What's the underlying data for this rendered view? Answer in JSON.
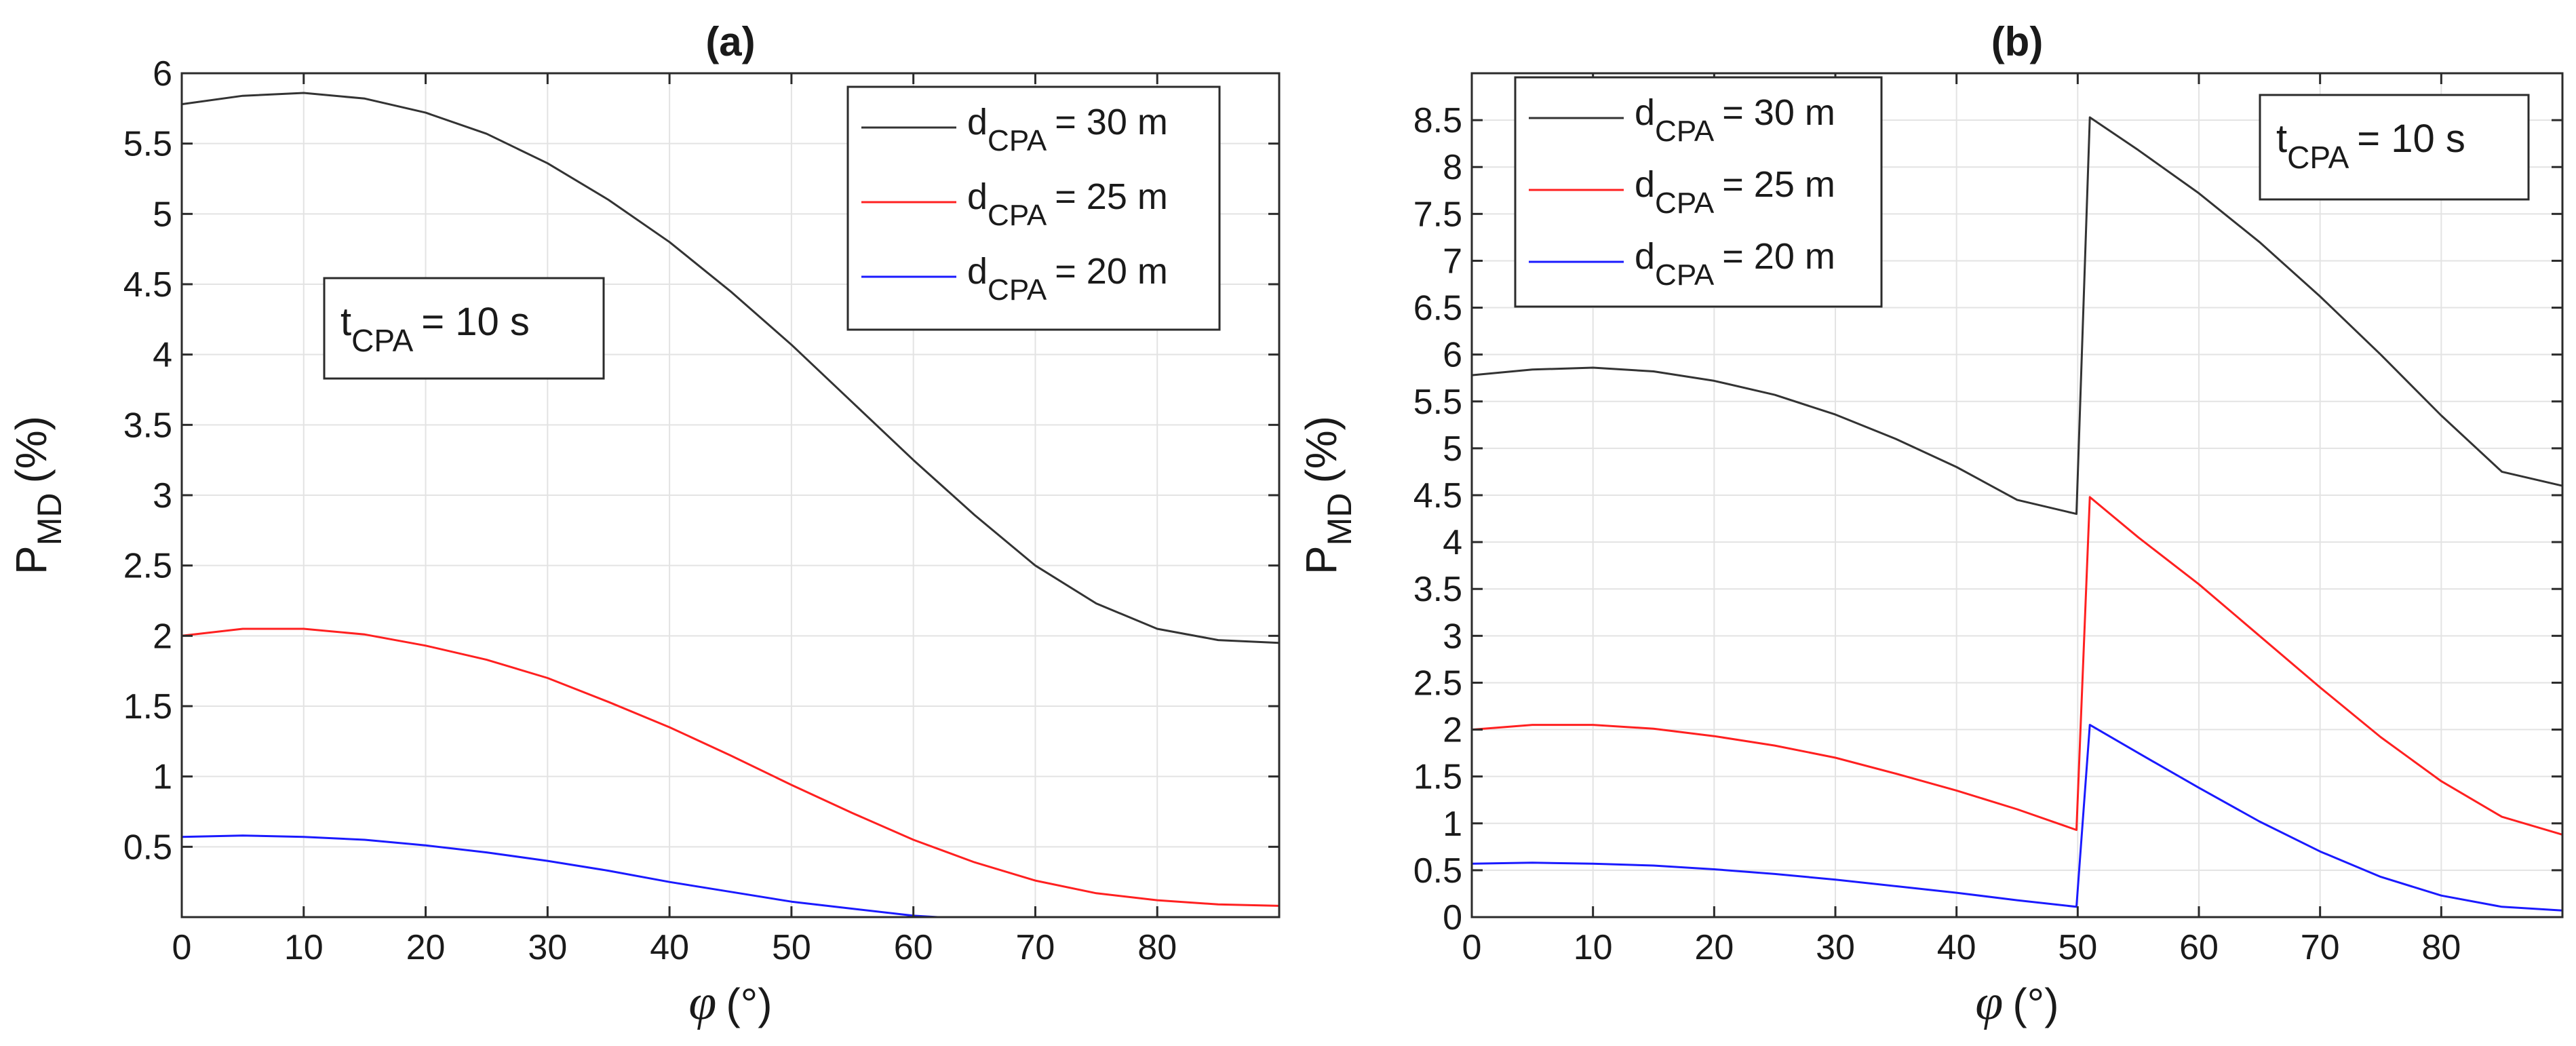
{
  "chart_data": [
    {
      "panel_label": "(a)",
      "type": "line",
      "title": "(a)",
      "xlabel": "φ (°)",
      "xlabel_symbol": "φ",
      "xlabel_unit": "(°)",
      "ylabel": "P_MD (%)",
      "ylabel_main": "P",
      "ylabel_sub": "MD",
      "ylabel_unit": "(%)",
      "xlim": [
        0,
        90
      ],
      "ylim": [
        0,
        6
      ],
      "x_ticks": [
        0,
        10,
        20,
        30,
        40,
        50,
        60,
        70,
        80
      ],
      "y_ticks": [
        0.5,
        1,
        1.5,
        2,
        2.5,
        3,
        3.5,
        4,
        4.5,
        5,
        5.5,
        6
      ],
      "grid": true,
      "legend_placement": "top-right",
      "annotation": {
        "main": "t",
        "sub": "CPA",
        "rest": "= 10 s"
      },
      "series": [
        {
          "name": "d_CPA = 30 m",
          "legend_main": "d",
          "legend_sub": "CPA",
          "legend_rest": "= 30 m",
          "color": "#333333",
          "x": [
            0,
            5,
            10,
            15,
            20,
            25,
            30,
            35,
            40,
            45,
            50,
            55,
            60,
            65,
            70,
            75,
            80,
            85,
            90
          ],
          "values": [
            5.78,
            5.84,
            5.86,
            5.82,
            5.72,
            5.57,
            5.36,
            5.1,
            4.8,
            4.45,
            4.07,
            3.66,
            3.25,
            2.86,
            2.5,
            2.23,
            2.05,
            1.97,
            1.95
          ]
        },
        {
          "name": "d_CPA = 25 m",
          "legend_main": "d",
          "legend_sub": "CPA",
          "legend_rest": "= 25 m",
          "color": "#ff2020",
          "x": [
            0,
            5,
            10,
            15,
            20,
            25,
            30,
            35,
            40,
            45,
            50,
            55,
            60,
            65,
            70,
            75,
            80,
            85,
            90
          ],
          "values": [
            2.0,
            2.05,
            2.05,
            2.01,
            1.93,
            1.83,
            1.7,
            1.53,
            1.35,
            1.15,
            0.94,
            0.74,
            0.55,
            0.39,
            0.26,
            0.17,
            0.12,
            0.09,
            0.08
          ]
        },
        {
          "name": "d_CPA = 20 m",
          "legend_main": "d",
          "legend_sub": "CPA",
          "legend_rest": "= 20 m",
          "color": "#1a1aff",
          "x": [
            0,
            5,
            10,
            15,
            20,
            25,
            30,
            35,
            40,
            45,
            50,
            55,
            60,
            62
          ],
          "values": [
            0.57,
            0.58,
            0.57,
            0.55,
            0.51,
            0.46,
            0.4,
            0.33,
            0.25,
            0.18,
            0.11,
            0.06,
            0.01,
            0.0
          ]
        }
      ]
    },
    {
      "panel_label": "(b)",
      "type": "line",
      "title": "(b)",
      "xlabel": "φ (°)",
      "xlabel_symbol": "φ",
      "xlabel_unit": "(°)",
      "ylabel": "P_MD (%)",
      "ylabel_main": "P",
      "ylabel_sub": "MD",
      "ylabel_unit": "(%)",
      "xlim": [
        0,
        90
      ],
      "ylim": [
        0,
        9
      ],
      "x_ticks": [
        0,
        10,
        20,
        30,
        40,
        50,
        60,
        70,
        80
      ],
      "y_ticks": [
        0,
        0.5,
        1,
        1.5,
        2,
        2.5,
        3,
        3.5,
        4,
        4.5,
        5,
        5.5,
        6,
        6.5,
        7,
        7.5,
        8,
        8.5
      ],
      "grid": true,
      "legend_placement": "top-left",
      "annotation": {
        "main": "t",
        "sub": "CPA",
        "rest": "= 10 s"
      },
      "series": [
        {
          "name": "d_CPA = 30 m",
          "legend_main": "d",
          "legend_sub": "CPA",
          "legend_rest": "= 30 m",
          "color": "#333333",
          "x": [
            0,
            5,
            10,
            15,
            20,
            25,
            30,
            35,
            40,
            45,
            49.9,
            51,
            55,
            60,
            65,
            70,
            75,
            80,
            85,
            90
          ],
          "values": [
            5.78,
            5.84,
            5.86,
            5.82,
            5.72,
            5.57,
            5.36,
            5.1,
            4.8,
            4.45,
            4.3,
            8.53,
            8.18,
            7.72,
            7.2,
            6.62,
            6.0,
            5.35,
            4.75,
            4.6
          ]
        },
        {
          "name": "d_CPA = 25 m",
          "legend_main": "d",
          "legend_sub": "CPA",
          "legend_rest": "= 25 m",
          "color": "#ff2020",
          "x": [
            0,
            5,
            10,
            15,
            20,
            25,
            30,
            35,
            40,
            45,
            49.9,
            51,
            55,
            60,
            65,
            70,
            75,
            80,
            85,
            90
          ],
          "values": [
            2.0,
            2.05,
            2.05,
            2.01,
            1.93,
            1.83,
            1.7,
            1.53,
            1.35,
            1.15,
            0.93,
            4.48,
            4.05,
            3.55,
            3.0,
            2.45,
            1.92,
            1.45,
            1.07,
            0.88
          ]
        },
        {
          "name": "d_CPA = 20 m",
          "legend_main": "d",
          "legend_sub": "CPA",
          "legend_rest": "= 20 m",
          "color": "#1a1aff",
          "x": [
            0,
            5,
            10,
            15,
            20,
            25,
            30,
            35,
            40,
            45,
            49.9,
            51,
            55,
            60,
            65,
            70,
            75,
            80,
            85,
            90
          ],
          "values": [
            0.57,
            0.58,
            0.57,
            0.55,
            0.51,
            0.46,
            0.4,
            0.33,
            0.26,
            0.18,
            0.11,
            2.05,
            1.75,
            1.38,
            1.02,
            0.7,
            0.43,
            0.23,
            0.11,
            0.07
          ]
        }
      ]
    }
  ]
}
